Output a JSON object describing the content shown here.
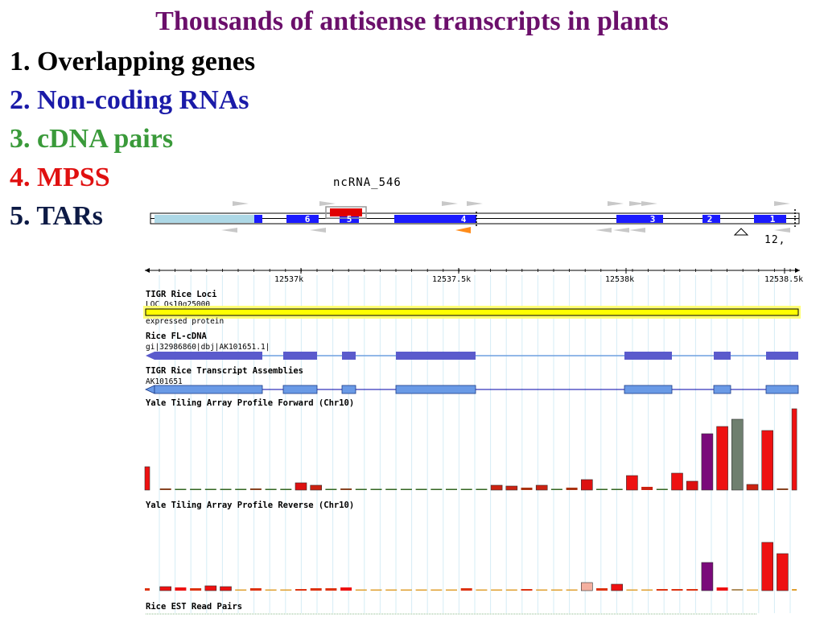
{
  "title": "Thousands of antisense transcripts in plants",
  "list": [
    {
      "num": "1.",
      "text": "Overlapping genes",
      "color": "#000000"
    },
    {
      "num": "2.",
      "text": "Non-coding RNAs",
      "color": "#1a1aa8"
    },
    {
      "num": "3.",
      "text": "cDNA pairs",
      "color": "#3a9a3a"
    },
    {
      "num": "4.",
      "text": "MPSS",
      "color": "#e01010"
    },
    {
      "num": "5.",
      "text": "TARs",
      "color": "#0d1a45"
    }
  ],
  "gene_model": {
    "ncrna_label": "ncRNA_546",
    "exon_labels": [
      "6",
      "5",
      "4",
      "3",
      "2",
      "1"
    ],
    "corner_label": "12,"
  },
  "browser": {
    "ruler_ticks": [
      "12537k",
      "12537.5k",
      "12538k",
      "12538.5k"
    ],
    "tracks": {
      "loci_title": "TIGR Rice Loci",
      "loci_id": "LOC_Os10g25000",
      "loci_desc": "expressed protein",
      "flcdna_title": "Rice FL-cDNA",
      "flcdna_id": "gi|32986860|dbj|AK101651.1|",
      "assembly_title": "TIGR Rice Transcript Assemblies",
      "assembly_id": "AK101651",
      "forward_title": "Yale Tiling Array Profile Forward (Chr10)",
      "reverse_title": "Yale Tiling Array Profile Reverse (Chr10)",
      "est_title": "Rice EST Read Pairs"
    },
    "forward_bars": [
      {
        "h": 29,
        "c": "#ee1111"
      },
      {
        "h": 2,
        "c": "#884422"
      },
      {
        "h": 1,
        "c": "#336622"
      },
      {
        "h": 1,
        "c": "#336622"
      },
      {
        "h": 1,
        "c": "#336622"
      },
      {
        "h": 1,
        "c": "#336622"
      },
      {
        "h": 1,
        "c": "#336622"
      },
      {
        "h": 2,
        "c": "#884422"
      },
      {
        "h": 1,
        "c": "#336622"
      },
      {
        "h": 1,
        "c": "#336622"
      },
      {
        "h": 9,
        "c": "#dd1111"
      },
      {
        "h": 6,
        "c": "#cc2211"
      },
      {
        "h": 1,
        "c": "#336622"
      },
      {
        "h": 2,
        "c": "#884422"
      },
      {
        "h": 1,
        "c": "#336622"
      },
      {
        "h": 1,
        "c": "#336622"
      },
      {
        "h": 1,
        "c": "#336622"
      },
      {
        "h": 1,
        "c": "#336622"
      },
      {
        "h": 1,
        "c": "#336622"
      },
      {
        "h": 1,
        "c": "#336622"
      },
      {
        "h": 1,
        "c": "#336622"
      },
      {
        "h": 1,
        "c": "#336622"
      },
      {
        "h": 1,
        "c": "#336622"
      },
      {
        "h": 6,
        "c": "#cc2211"
      },
      {
        "h": 5,
        "c": "#cc2211"
      },
      {
        "h": 3,
        "c": "#aa3311"
      },
      {
        "h": 6,
        "c": "#cc2211"
      },
      {
        "h": 1,
        "c": "#336622"
      },
      {
        "h": 3,
        "c": "#aa3311"
      },
      {
        "h": 13,
        "c": "#dd1111"
      },
      {
        "h": 1,
        "c": "#336622"
      },
      {
        "h": 1,
        "c": "#336622"
      },
      {
        "h": 18,
        "c": "#ee1111"
      },
      {
        "h": 4,
        "c": "#cc2211"
      },
      {
        "h": 1,
        "c": "#336622"
      },
      {
        "h": 21,
        "c": "#ee1111"
      },
      {
        "h": 11,
        "c": "#dd1111"
      },
      {
        "h": 70,
        "c": "#7a0a7a"
      },
      {
        "h": 79,
        "c": "#ee1111"
      },
      {
        "h": 88,
        "c": "#6f7f6f"
      },
      {
        "h": 7,
        "c": "#cc2211"
      },
      {
        "h": 74,
        "c": "#ee1111"
      },
      {
        "h": 2,
        "c": "#884422"
      },
      {
        "h": 101,
        "c": "#ee1111"
      }
    ],
    "reverse_bars": [
      {
        "h": 3,
        "c": "#dd3311"
      },
      {
        "h": 5,
        "c": "#ee1111"
      },
      {
        "h": 4,
        "c": "#ee1111"
      },
      {
        "h": 3,
        "c": "#dd3311"
      },
      {
        "h": 6,
        "c": "#ee1111"
      },
      {
        "h": 5,
        "c": "#ee1111"
      },
      {
        "h": 1,
        "c": "#e0a030"
      },
      {
        "h": 3,
        "c": "#dd3311"
      },
      {
        "h": 1,
        "c": "#e0a030"
      },
      {
        "h": 1,
        "c": "#e0a030"
      },
      {
        "h": 2,
        "c": "#dd3311"
      },
      {
        "h": 3,
        "c": "#dd3311"
      },
      {
        "h": 3,
        "c": "#dd3311"
      },
      {
        "h": 4,
        "c": "#ee1111"
      },
      {
        "h": 1,
        "c": "#e0a030"
      },
      {
        "h": 1,
        "c": "#e0a030"
      },
      {
        "h": 1,
        "c": "#e0a030"
      },
      {
        "h": 1,
        "c": "#e0a030"
      },
      {
        "h": 1,
        "c": "#e0a030"
      },
      {
        "h": 1,
        "c": "#e0a030"
      },
      {
        "h": 1,
        "c": "#e0a030"
      },
      {
        "h": 3,
        "c": "#dd3311"
      },
      {
        "h": 1,
        "c": "#e0a030"
      },
      {
        "h": 1,
        "c": "#e0a030"
      },
      {
        "h": 1,
        "c": "#e0a030"
      },
      {
        "h": 2,
        "c": "#dd3311"
      },
      {
        "h": 1,
        "c": "#e0a030"
      },
      {
        "h": 1,
        "c": "#e0a030"
      },
      {
        "h": 1,
        "c": "#e0a030"
      },
      {
        "h": 10,
        "c": "#f4b0a0"
      },
      {
        "h": 3,
        "c": "#dd3311"
      },
      {
        "h": 8,
        "c": "#ee1111"
      },
      {
        "h": 1,
        "c": "#e0a030"
      },
      {
        "h": 1,
        "c": "#e0a030"
      },
      {
        "h": 2,
        "c": "#dd3311"
      },
      {
        "h": 2,
        "c": "#dd3311"
      },
      {
        "h": 2,
        "c": "#dd3311"
      },
      {
        "h": 35,
        "c": "#7a0a7a"
      },
      {
        "h": 4,
        "c": "#ee1111"
      },
      {
        "h": 2,
        "c": "#b09060"
      },
      {
        "h": 1,
        "c": "#e0a030"
      },
      {
        "h": 60,
        "c": "#ee1111"
      },
      {
        "h": 46,
        "c": "#ee1111"
      },
      {
        "h": 2,
        "c": "#e0a030"
      }
    ]
  }
}
